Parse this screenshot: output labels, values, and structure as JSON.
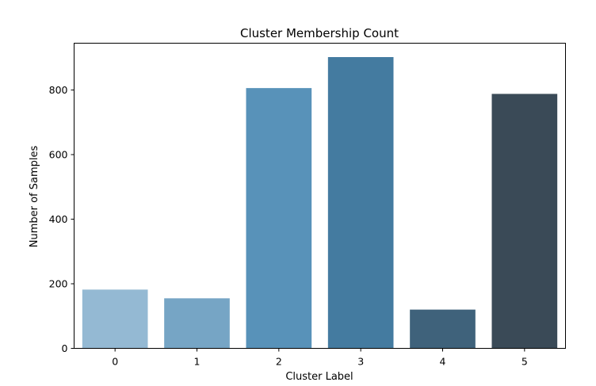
{
  "chart_data": {
    "type": "bar",
    "title": "Cluster Membership Count",
    "xlabel": "Cluster Label",
    "ylabel": "Number of Samples",
    "categories": [
      "0",
      "1",
      "2",
      "3",
      "4",
      "5"
    ],
    "values": [
      182,
      155,
      806,
      902,
      120,
      788
    ],
    "ylim": [
      0,
      945
    ],
    "yticks": [
      0,
      200,
      400,
      600,
      800
    ],
    "colors": [
      "#94b9d3",
      "#76a5c5",
      "#5892b9",
      "#447ba0",
      "#3f627b",
      "#3a4a57"
    ],
    "grid": false,
    "legend": "none"
  }
}
